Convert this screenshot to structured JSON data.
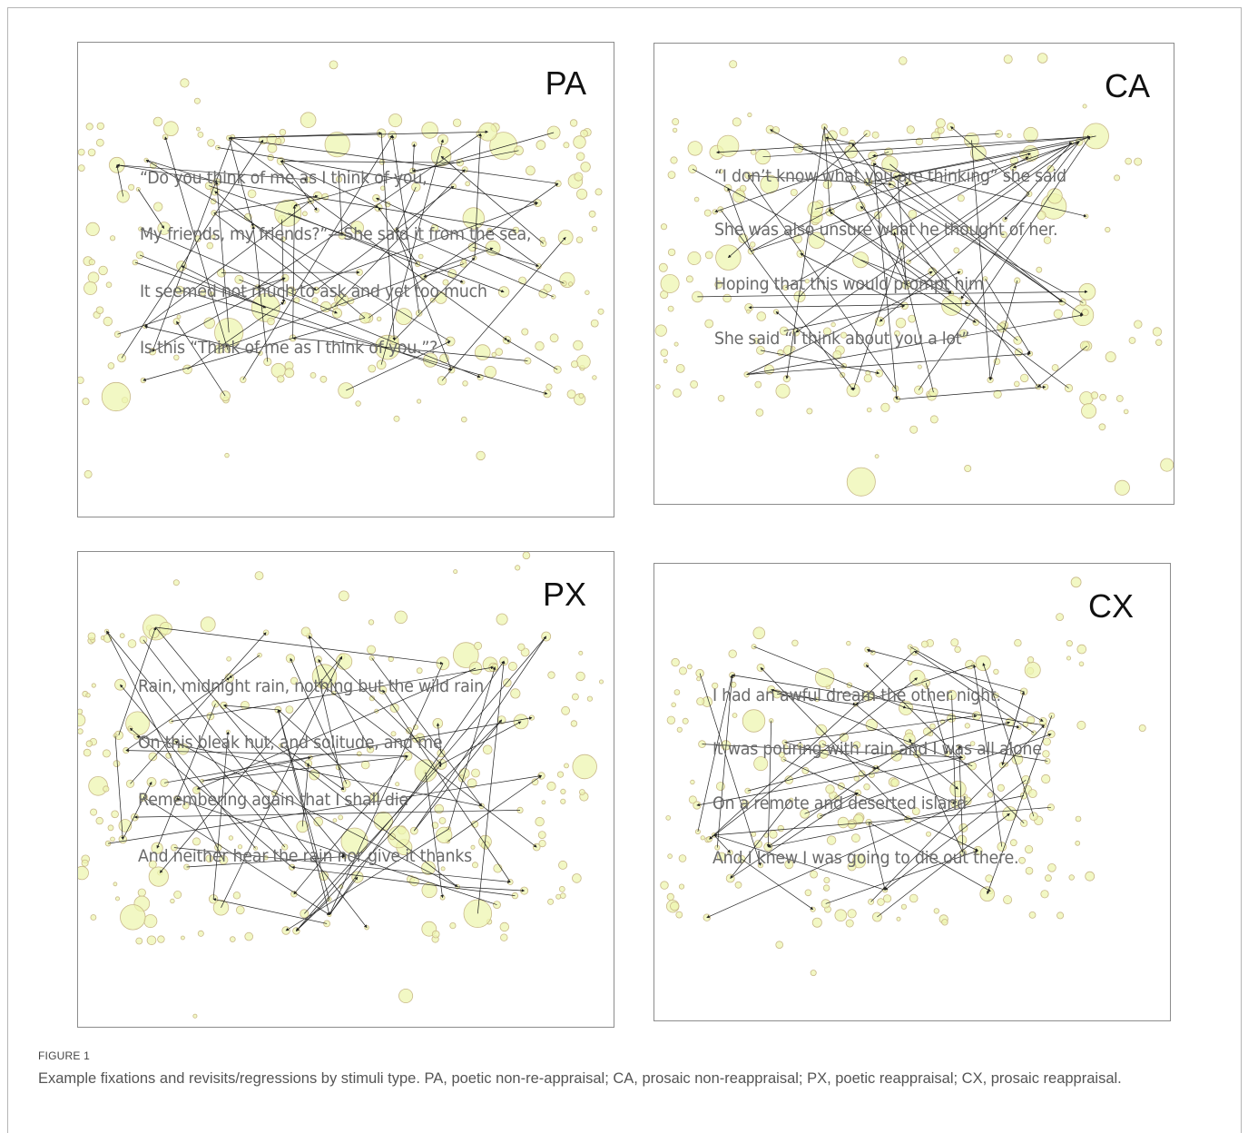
{
  "figure": {
    "label": "FIGURE 1",
    "caption": "Example fixations and revisits/regressions by stimuli type. PA, poetic non-re-appraisal; CA, prosaic non-reappraisal; PX, poetic reappraisal; CX, prosaic reappraisal."
  },
  "panels": [
    {
      "id": "PA",
      "label": "PA",
      "lines": [
        "“Do you think of me as I think of you,",
        "My friends, my friends?”—She said it from the sea,",
        "It seemed not much to ask and yet too much",
        "Is this “Think of me as I think of you.”?"
      ]
    },
    {
      "id": "CA",
      "label": "CA",
      "lines": [
        "“I don’t know what you are thinking” she said",
        "She was also unsure what he thought of her.",
        "Hoping that this would prompt him",
        "She said “I think about you a lot”"
      ]
    },
    {
      "id": "PX",
      "label": "PX",
      "lines": [
        "Rain, midnight rain, nothing but the wild rain",
        "On this bleak hut, and solitude, and me",
        "Remembering again that I shall die",
        "And neither hear the rain nor give it thanks"
      ]
    },
    {
      "id": "CX",
      "label": "CX",
      "lines": [
        "I had an awful dream the other night.",
        "It was pouring with rain and I was all alone",
        "On a remote and deserted island",
        "And I knew I was going to die out there."
      ]
    }
  ],
  "colors": {
    "fixation_fill": "#eef5b0",
    "fixation_stroke": "#c9b98a",
    "saccade": "#222222"
  }
}
